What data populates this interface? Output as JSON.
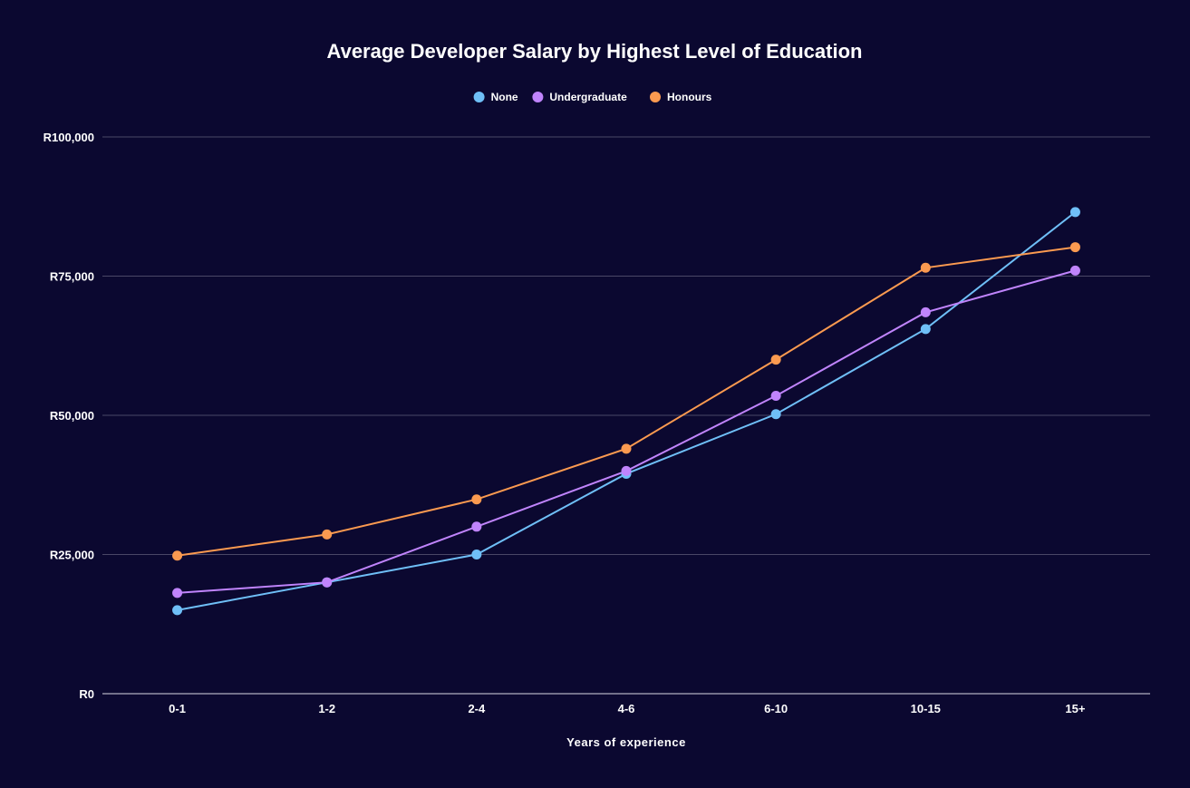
{
  "chart_data": {
    "type": "line",
    "title": "Average Developer Salary by Highest Level of Education",
    "xlabel": "Years of experience",
    "ylabel": "",
    "categories": [
      "0-1",
      "1-2",
      "2-4",
      "4-6",
      "6-10",
      "10-15",
      "15+"
    ],
    "ylim": [
      0,
      100000
    ],
    "yticks": [
      0,
      25000,
      50000,
      75000,
      100000
    ],
    "ytick_labels": [
      "R0",
      "R25,000",
      "R50,000",
      "R75,000",
      "R100,000"
    ],
    "grid": true,
    "legend_position": "top-center",
    "series": [
      {
        "name": "None",
        "color": "#6fbff7",
        "values": [
          15000,
          20000,
          25000,
          39500,
          50200,
          65500,
          86500
        ]
      },
      {
        "name": "Undergraduate",
        "color": "#c084fc",
        "values": [
          18100,
          20000,
          30000,
          40000,
          53500,
          68500,
          76000
        ]
      },
      {
        "name": "Honours",
        "color": "#fb9a50",
        "values": [
          24800,
          28600,
          34900,
          44000,
          60000,
          76500,
          80200
        ]
      }
    ]
  }
}
